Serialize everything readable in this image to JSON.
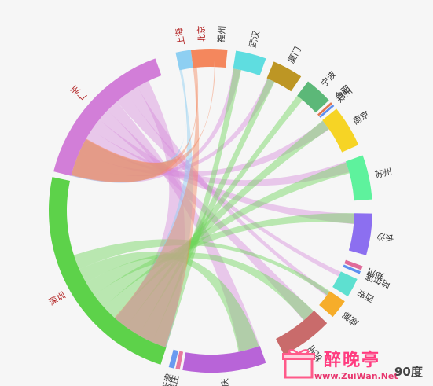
{
  "diagram": {
    "type": "chord",
    "nodes": [
      {
        "id": "shanghai",
        "label": "上海",
        "color": "#8ecff2",
        "labelColor": "#b22222"
      },
      {
        "id": "beijing",
        "label": "北京",
        "color": "#f4875d",
        "labelColor": "#b22222"
      },
      {
        "id": "fuzhou",
        "label": "福州",
        "color": "#f4875d",
        "labelColor": "#333333"
      },
      {
        "id": "wuhan",
        "label": "武汉",
        "color": "#5fdde0",
        "labelColor": "#333333"
      },
      {
        "id": "xiamen",
        "label": "厦门",
        "color": "#bd9624",
        "labelColor": "#333333"
      },
      {
        "id": "ningbo",
        "label": "宁波",
        "color": "#5cb878",
        "labelColor": "#333333"
      },
      {
        "id": "hefei",
        "label": "合肥",
        "color": "#e07650",
        "labelColor": "#333333"
      },
      {
        "id": "zhengzhou",
        "label": "郑州",
        "color": "#5d8ff0",
        "labelColor": "#333333"
      },
      {
        "id": "nanjing",
        "label": "南京",
        "color": "#f6d425",
        "labelColor": "#333333"
      },
      {
        "id": "suzhou",
        "label": "苏州",
        "color": "#5ef29d",
        "labelColor": "#333333"
      },
      {
        "id": "changsha",
        "label": "长沙",
        "color": "#8c6ff0",
        "labelColor": "#333333"
      },
      {
        "id": "hangzhou2",
        "label": "郑州",
        "color": "#e06a9a",
        "labelColor": "#333333"
      },
      {
        "id": "haerbin",
        "label": "哈尔滨",
        "color": "#5d8ff0",
        "labelColor": "#333333"
      },
      {
        "id": "xian",
        "label": "西安",
        "color": "#5ee0d0",
        "labelColor": "#333333"
      },
      {
        "id": "chengdu",
        "label": "成都",
        "color": "#f6ad2a",
        "labelColor": "#333333"
      },
      {
        "id": "hangzhou",
        "label": "杭州",
        "color": "#c96b6b",
        "labelColor": "#333333"
      },
      {
        "id": "chongqing",
        "label": "重庆",
        "color": "#b864d8",
        "labelColor": "#333333"
      },
      {
        "id": "shijiazhuang",
        "label": "石家庄",
        "color": "#e77aa0",
        "labelColor": "#333333"
      },
      {
        "id": "tianjin",
        "label": "天津",
        "color": "#6a9af0",
        "labelColor": "#333333"
      },
      {
        "id": "shenzhen",
        "label": "深圳",
        "color": "#5dd24a",
        "labelColor": "#b22222"
      },
      {
        "id": "guangzhou",
        "label": "广州",
        "color": "#d27ed8",
        "labelColor": "#b22222"
      }
    ]
  },
  "watermark": {
    "site_name": "醉晚亭",
    "url": "www.ZuiWan.Net",
    "extra": "90度"
  }
}
